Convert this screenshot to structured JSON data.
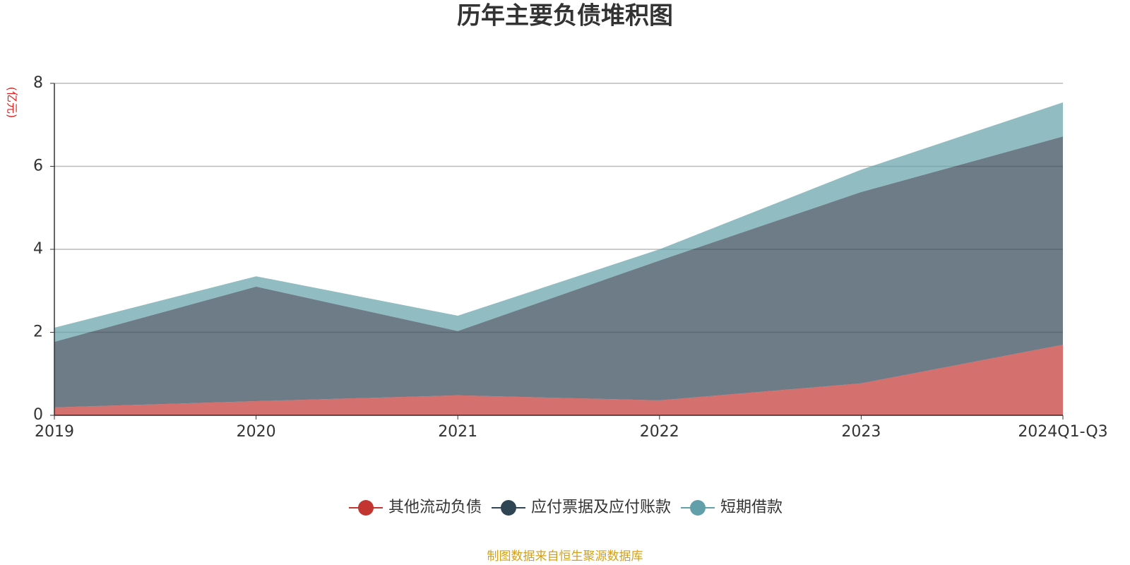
{
  "chart_data": {
    "type": "stacked_area",
    "title": "历年主要负债堆积图",
    "y_label": "(亿元)",
    "source": "制图数据来自恒生聚源数据库",
    "categories": [
      "2019",
      "2020",
      "2021",
      "2022",
      "2023",
      "2024Q1-Q3"
    ],
    "series": [
      {
        "name": "其他流动负债",
        "color": "#c23531",
        "values": [
          0.19,
          0.34,
          0.48,
          0.36,
          0.77,
          1.7
        ]
      },
      {
        "name": "应付票据及应付账款",
        "color": "#2f4554",
        "values": [
          1.58,
          2.76,
          1.55,
          3.37,
          4.61,
          5.02
        ]
      },
      {
        "name": "短期借款",
        "color": "#61a0a8",
        "values": [
          0.34,
          0.25,
          0.37,
          0.27,
          0.54,
          0.82
        ]
      }
    ],
    "ylim": [
      0,
      8
    ],
    "yticks": [
      0,
      2,
      4,
      6,
      8
    ],
    "grid": true
  }
}
